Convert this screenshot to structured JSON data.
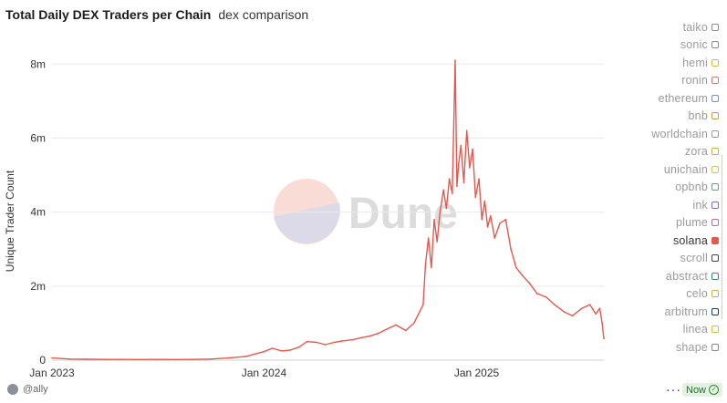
{
  "header": {
    "title": "Total Daily DEX Traders per Chain",
    "subtitle": "dex comparison"
  },
  "watermark": {
    "text": "Dune"
  },
  "footer": {
    "author": "@ally",
    "more": "···",
    "now_label": "Now"
  },
  "colors": {
    "series": "#e4594f",
    "grid": "#e9e9e9",
    "axis_text": "#333333"
  },
  "legend": {
    "items": [
      {
        "label": "taiko",
        "color": "#8a8a8a",
        "active": false
      },
      {
        "label": "sonic",
        "color": "#8a8a8a",
        "active": false
      },
      {
        "label": "hemi",
        "color": "#c9c040",
        "active": false
      },
      {
        "label": "ronin",
        "color": "#c77",
        "active": false
      },
      {
        "label": "ethereum",
        "color": "#7a8bbf",
        "active": false
      },
      {
        "label": "bnb",
        "color": "#c9a030",
        "active": false
      },
      {
        "label": "worldchain",
        "color": "#999",
        "active": false
      },
      {
        "label": "zora",
        "color": "#c9b040",
        "active": false
      },
      {
        "label": "unichain",
        "color": "#c9c060",
        "active": false
      },
      {
        "label": "opbnb",
        "color": "#6a9a9a",
        "active": false
      },
      {
        "label": "ink",
        "color": "#8a6ab0",
        "active": false
      },
      {
        "label": "plume",
        "color": "#c06a9a",
        "active": false
      },
      {
        "label": "solana",
        "color": "#e4594f",
        "active": true
      },
      {
        "label": "scroll",
        "color": "#444",
        "active": false
      },
      {
        "label": "abstract",
        "color": "#2a8a8a",
        "active": false
      },
      {
        "label": "celo",
        "color": "#c9b040",
        "active": false
      },
      {
        "label": "arbitrum",
        "color": "#1a3a5a",
        "active": false
      },
      {
        "label": "linea",
        "color": "#c9c040",
        "active": false
      },
      {
        "label": "shape",
        "color": "#888",
        "active": false
      }
    ]
  },
  "chart_data": {
    "type": "line",
    "title": "Total Daily DEX Traders per Chain",
    "subtitle": "dex comparison",
    "xlabel": "",
    "ylabel": "Unique Trader Count",
    "xlim": [
      "2023-01-01",
      "2025-08-08"
    ],
    "ylim": [
      0,
      8500000
    ],
    "x_ticks": [
      {
        "date": "2023-01-01",
        "label": "Jan 2023"
      },
      {
        "date": "2024-01-01",
        "label": "Jan 2024"
      },
      {
        "date": "2025-01-01",
        "label": "Jan 2025"
      }
    ],
    "y_ticks": [
      {
        "value": 0,
        "label": "0"
      },
      {
        "value": 2000000,
        "label": "2m"
      },
      {
        "value": 4000000,
        "label": "4m"
      },
      {
        "value": 6000000,
        "label": "6m"
      },
      {
        "value": 8000000,
        "label": "8m"
      }
    ],
    "grid": true,
    "legend_position": "right",
    "series": [
      {
        "name": "solana",
        "color": "#e4594f",
        "points": [
          [
            "2023-01-01",
            60000
          ],
          [
            "2023-02-01",
            30000
          ],
          [
            "2023-03-01",
            25000
          ],
          [
            "2023-04-01",
            20000
          ],
          [
            "2023-05-01",
            20000
          ],
          [
            "2023-06-01",
            18000
          ],
          [
            "2023-07-01",
            20000
          ],
          [
            "2023-08-01",
            18000
          ],
          [
            "2023-09-01",
            20000
          ],
          [
            "2023-10-01",
            30000
          ],
          [
            "2023-11-01",
            60000
          ],
          [
            "2023-12-01",
            100000
          ],
          [
            "2023-12-20",
            180000
          ],
          [
            "2024-01-01",
            230000
          ],
          [
            "2024-01-15",
            320000
          ],
          [
            "2024-02-01",
            250000
          ],
          [
            "2024-02-15",
            270000
          ],
          [
            "2024-03-01",
            350000
          ],
          [
            "2024-03-15",
            500000
          ],
          [
            "2024-04-01",
            480000
          ],
          [
            "2024-04-15",
            420000
          ],
          [
            "2024-05-01",
            480000
          ],
          [
            "2024-05-15",
            520000
          ],
          [
            "2024-06-01",
            550000
          ],
          [
            "2024-06-15",
            600000
          ],
          [
            "2024-07-01",
            650000
          ],
          [
            "2024-07-15",
            720000
          ],
          [
            "2024-08-01",
            850000
          ],
          [
            "2024-08-15",
            950000
          ],
          [
            "2024-09-01",
            800000
          ],
          [
            "2024-09-15",
            1000000
          ],
          [
            "2024-10-01",
            1500000
          ],
          [
            "2024-10-05",
            2600000
          ],
          [
            "2024-10-10",
            3300000
          ],
          [
            "2024-10-15",
            2500000
          ],
          [
            "2024-10-20",
            3800000
          ],
          [
            "2024-10-25",
            3200000
          ],
          [
            "2024-10-30",
            4000000
          ],
          [
            "2024-11-05",
            4600000
          ],
          [
            "2024-11-10",
            4100000
          ],
          [
            "2024-11-15",
            4900000
          ],
          [
            "2024-11-20",
            4500000
          ],
          [
            "2024-11-25",
            8100000
          ],
          [
            "2024-11-28",
            4700000
          ],
          [
            "2024-12-01",
            5300000
          ],
          [
            "2024-12-05",
            5800000
          ],
          [
            "2024-12-10",
            4800000
          ],
          [
            "2024-12-15",
            6200000
          ],
          [
            "2024-12-20",
            5200000
          ],
          [
            "2024-12-25",
            5700000
          ],
          [
            "2024-12-30",
            4400000
          ],
          [
            "2025-01-05",
            4900000
          ],
          [
            "2025-01-10",
            3800000
          ],
          [
            "2025-01-15",
            4300000
          ],
          [
            "2025-01-20",
            3600000
          ],
          [
            "2025-01-25",
            3900000
          ],
          [
            "2025-02-01",
            3300000
          ],
          [
            "2025-02-10",
            3700000
          ],
          [
            "2025-02-20",
            3800000
          ],
          [
            "2025-03-01",
            3000000
          ],
          [
            "2025-03-10",
            2500000
          ],
          [
            "2025-03-20",
            2300000
          ],
          [
            "2025-04-01",
            2100000
          ],
          [
            "2025-04-15",
            1800000
          ],
          [
            "2025-05-01",
            1700000
          ],
          [
            "2025-05-15",
            1500000
          ],
          [
            "2025-06-01",
            1300000
          ],
          [
            "2025-06-15",
            1200000
          ],
          [
            "2025-07-01",
            1400000
          ],
          [
            "2025-07-15",
            1500000
          ],
          [
            "2025-07-25",
            1250000
          ],
          [
            "2025-08-01",
            1400000
          ],
          [
            "2025-08-05",
            1000000
          ],
          [
            "2025-08-08",
            580000
          ]
        ]
      }
    ]
  }
}
